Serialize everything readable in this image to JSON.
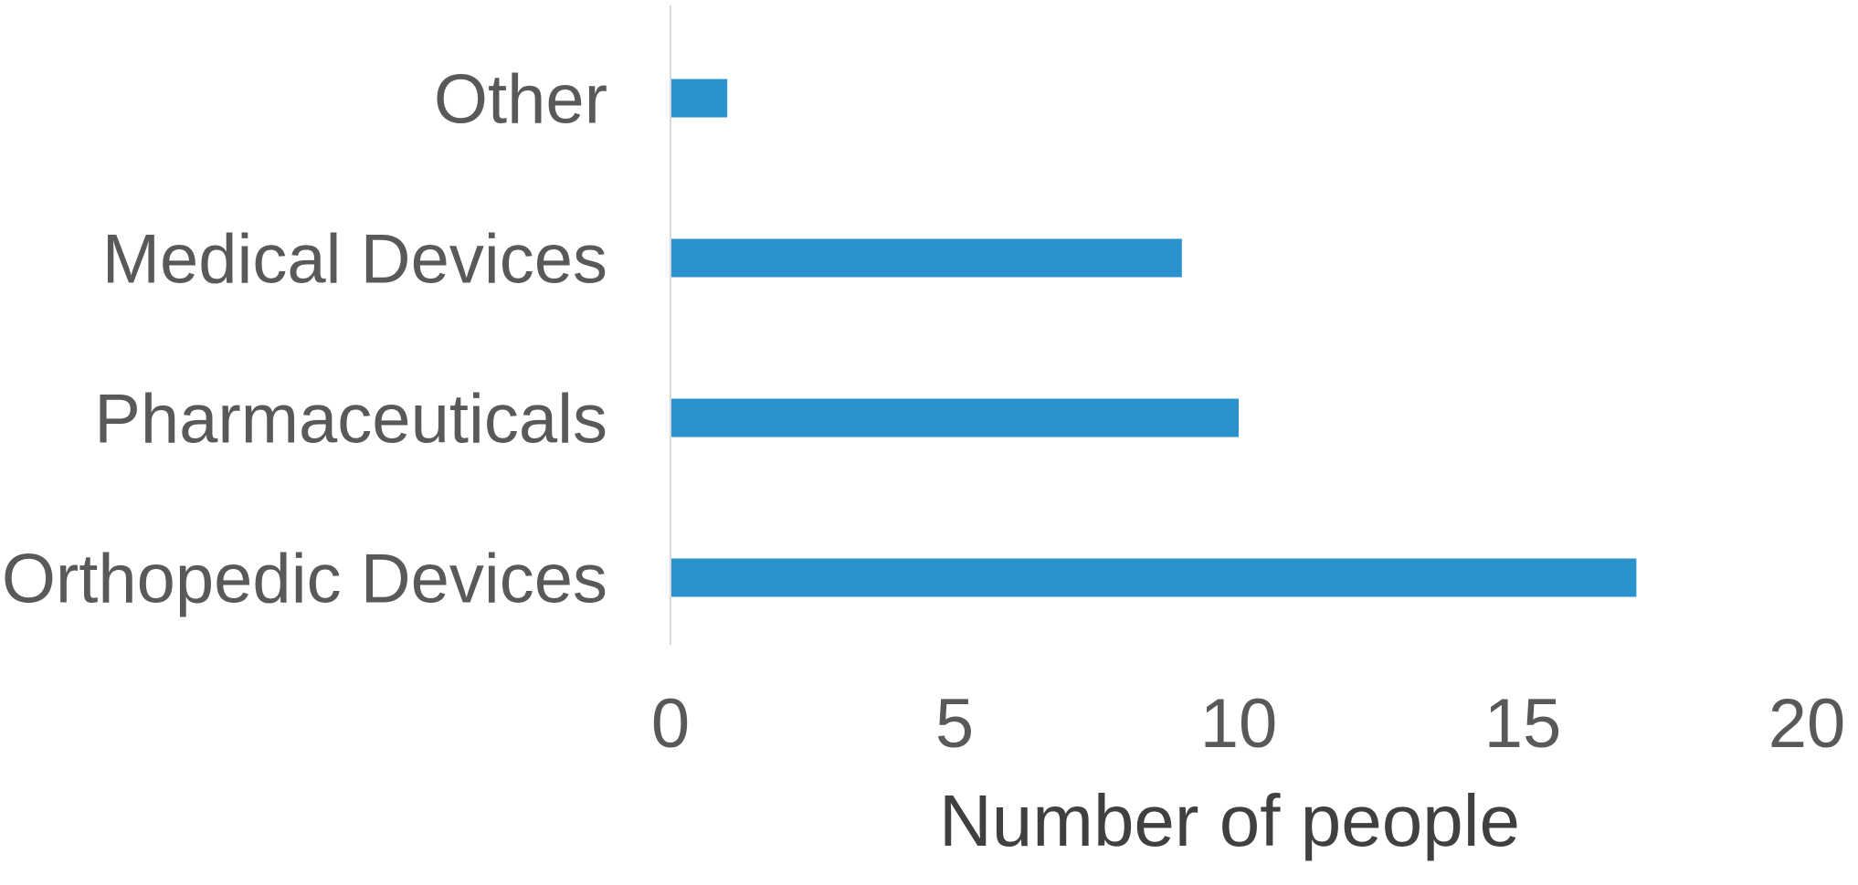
{
  "chart_data": {
    "type": "bar",
    "orientation": "horizontal",
    "categories": [
      "Other",
      "Medical Devices",
      "Pharmaceuticals",
      "Orthopedic Devices"
    ],
    "values": [
      1,
      9,
      10,
      17
    ],
    "xlabel": "Number of people",
    "ylabel": "",
    "xlim": [
      0,
      20
    ],
    "xticks": [
      0,
      5,
      10,
      15,
      20
    ],
    "xtick_labels": [
      "0",
      "5",
      "10",
      "15",
      "20"
    ],
    "grid": false,
    "legend": "none"
  },
  "colors": {
    "bar": "#2A93CD",
    "label_text": "#595959",
    "axis_title_text": "#404040",
    "axis_line": "#D9D9D9"
  }
}
